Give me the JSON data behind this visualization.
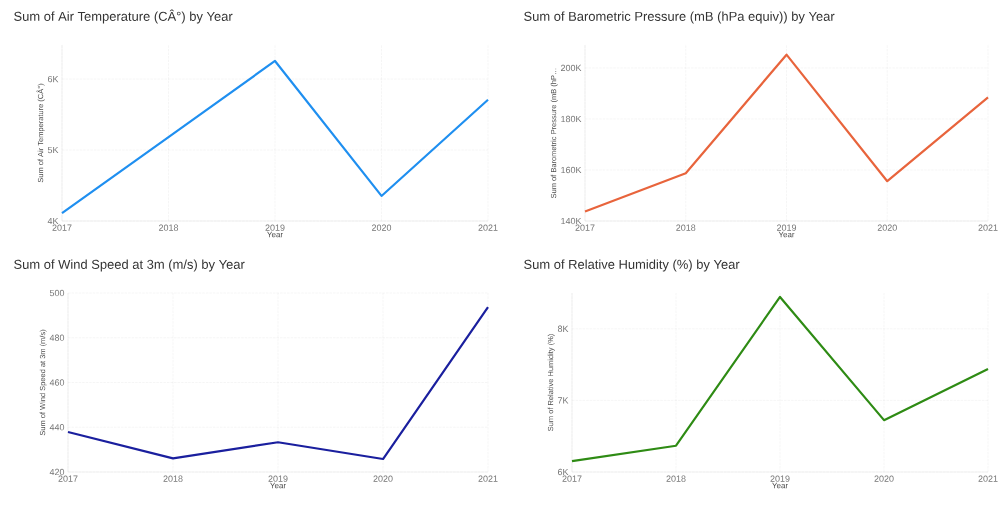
{
  "chart_data": [
    {
      "type": "line",
      "title": "Sum of Air Temperature (CÂ°) by Year",
      "xlabel": "Year",
      "ylabel": "Sum of Air Temperature (CÂ°)",
      "x": [
        2017,
        2018,
        2019,
        2020,
        2021
      ],
      "values": [
        4111,
        5183,
        6255,
        4353,
        5708
      ],
      "color": "#1f8ff0",
      "xlim": [
        2017,
        2021
      ],
      "xticks": [
        2017,
        2018,
        2019,
        2020,
        2021
      ],
      "ylim": [
        4000,
        6480
      ],
      "yticks": [
        {
          "value": 4000,
          "label": "4K"
        },
        {
          "value": 5000,
          "label": "5K"
        },
        {
          "value": 6000,
          "label": "6K"
        }
      ],
      "grid": true
    },
    {
      "type": "line",
      "title": "Sum of Barometric Pressure (mB (hPa equiv)) by Year",
      "xlabel": "Year",
      "ylabel": "Sum of Barometric Pressure (mB (hP…",
      "x": [
        2017,
        2018,
        2019,
        2020,
        2021
      ],
      "values": [
        143700,
        158700,
        205200,
        155600,
        188500
      ],
      "color": "#e8643c",
      "xlim": [
        2017,
        2021
      ],
      "xticks": [
        2017,
        2018,
        2019,
        2020,
        2021
      ],
      "ylim": [
        140000,
        209000
      ],
      "yticks": [
        {
          "value": 140000,
          "label": "140K"
        },
        {
          "value": 160000,
          "label": "160K"
        },
        {
          "value": 180000,
          "label": "180K"
        },
        {
          "value": 200000,
          "label": "200K"
        }
      ],
      "grid": true
    },
    {
      "type": "line",
      "title": "Sum of Wind Speed at 3m (m/s) by Year",
      "xlabel": "Year",
      "ylabel": "Sum of Wind Speed at 3m (m/s)",
      "x": [
        2017,
        2018,
        2019,
        2020,
        2021
      ],
      "values": [
        437.9,
        426.1,
        433.3,
        425.8,
        493.7
      ],
      "color": "#1a1f9e",
      "xlim": [
        2017,
        2021
      ],
      "xticks": [
        2017,
        2018,
        2019,
        2020,
        2021
      ],
      "ylim": [
        420,
        500
      ],
      "yticks": [
        420,
        440,
        460,
        480,
        500
      ],
      "grid": true
    },
    {
      "type": "line",
      "title": "Sum of Relative Humidity (%) by Year",
      "xlabel": "Year",
      "ylabel": "Sum of Relative Humidity (%)",
      "x": [
        2017,
        2018,
        2019,
        2020,
        2021
      ],
      "values": [
        6153,
        6367,
        8445,
        6724,
        7439
      ],
      "color": "#2e8b14",
      "xlim": [
        2017,
        2021
      ],
      "xticks": [
        2017,
        2018,
        2019,
        2020,
        2021
      ],
      "ylim": [
        6000,
        8500
      ],
      "yticks": [
        {
          "value": 6000,
          "label": "6K"
        },
        {
          "value": 7000,
          "label": "7K"
        },
        {
          "value": 8000,
          "label": "8K"
        }
      ],
      "grid": true
    }
  ]
}
